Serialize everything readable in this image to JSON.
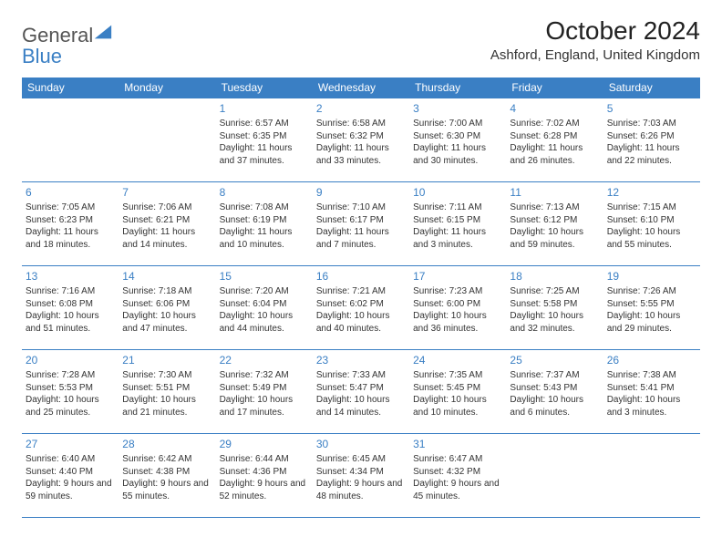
{
  "branding": {
    "text_gray": "General",
    "text_blue": "Blue",
    "logo_color": "#3a7fc4",
    "text_gray_color": "#555555"
  },
  "header": {
    "title": "October 2024",
    "location": "Ashford, England, United Kingdom"
  },
  "style": {
    "header_bg": "#3a7fc4",
    "header_text": "#ffffff",
    "border_color": "#3a7fc4",
    "daynum_color": "#3a7fc4",
    "body_text": "#333333",
    "title_fontsize": 28,
    "location_fontsize": 15,
    "th_fontsize": 12,
    "cell_fontsize": 10,
    "daynum_fontsize": 12
  },
  "table": {
    "columns": [
      "Sunday",
      "Monday",
      "Tuesday",
      "Wednesday",
      "Thursday",
      "Friday",
      "Saturday"
    ],
    "weeks": [
      [
        null,
        null,
        {
          "n": "1",
          "sunrise": "6:57 AM",
          "sunset": "6:35 PM",
          "daylight": "11 hours and 37 minutes."
        },
        {
          "n": "2",
          "sunrise": "6:58 AM",
          "sunset": "6:32 PM",
          "daylight": "11 hours and 33 minutes."
        },
        {
          "n": "3",
          "sunrise": "7:00 AM",
          "sunset": "6:30 PM",
          "daylight": "11 hours and 30 minutes."
        },
        {
          "n": "4",
          "sunrise": "7:02 AM",
          "sunset": "6:28 PM",
          "daylight": "11 hours and 26 minutes."
        },
        {
          "n": "5",
          "sunrise": "7:03 AM",
          "sunset": "6:26 PM",
          "daylight": "11 hours and 22 minutes."
        }
      ],
      [
        {
          "n": "6",
          "sunrise": "7:05 AM",
          "sunset": "6:23 PM",
          "daylight": "11 hours and 18 minutes."
        },
        {
          "n": "7",
          "sunrise": "7:06 AM",
          "sunset": "6:21 PM",
          "daylight": "11 hours and 14 minutes."
        },
        {
          "n": "8",
          "sunrise": "7:08 AM",
          "sunset": "6:19 PM",
          "daylight": "11 hours and 10 minutes."
        },
        {
          "n": "9",
          "sunrise": "7:10 AM",
          "sunset": "6:17 PM",
          "daylight": "11 hours and 7 minutes."
        },
        {
          "n": "10",
          "sunrise": "7:11 AM",
          "sunset": "6:15 PM",
          "daylight": "11 hours and 3 minutes."
        },
        {
          "n": "11",
          "sunrise": "7:13 AM",
          "sunset": "6:12 PM",
          "daylight": "10 hours and 59 minutes."
        },
        {
          "n": "12",
          "sunrise": "7:15 AM",
          "sunset": "6:10 PM",
          "daylight": "10 hours and 55 minutes."
        }
      ],
      [
        {
          "n": "13",
          "sunrise": "7:16 AM",
          "sunset": "6:08 PM",
          "daylight": "10 hours and 51 minutes."
        },
        {
          "n": "14",
          "sunrise": "7:18 AM",
          "sunset": "6:06 PM",
          "daylight": "10 hours and 47 minutes."
        },
        {
          "n": "15",
          "sunrise": "7:20 AM",
          "sunset": "6:04 PM",
          "daylight": "10 hours and 44 minutes."
        },
        {
          "n": "16",
          "sunrise": "7:21 AM",
          "sunset": "6:02 PM",
          "daylight": "10 hours and 40 minutes."
        },
        {
          "n": "17",
          "sunrise": "7:23 AM",
          "sunset": "6:00 PM",
          "daylight": "10 hours and 36 minutes."
        },
        {
          "n": "18",
          "sunrise": "7:25 AM",
          "sunset": "5:58 PM",
          "daylight": "10 hours and 32 minutes."
        },
        {
          "n": "19",
          "sunrise": "7:26 AM",
          "sunset": "5:55 PM",
          "daylight": "10 hours and 29 minutes."
        }
      ],
      [
        {
          "n": "20",
          "sunrise": "7:28 AM",
          "sunset": "5:53 PM",
          "daylight": "10 hours and 25 minutes."
        },
        {
          "n": "21",
          "sunrise": "7:30 AM",
          "sunset": "5:51 PM",
          "daylight": "10 hours and 21 minutes."
        },
        {
          "n": "22",
          "sunrise": "7:32 AM",
          "sunset": "5:49 PM",
          "daylight": "10 hours and 17 minutes."
        },
        {
          "n": "23",
          "sunrise": "7:33 AM",
          "sunset": "5:47 PM",
          "daylight": "10 hours and 14 minutes."
        },
        {
          "n": "24",
          "sunrise": "7:35 AM",
          "sunset": "5:45 PM",
          "daylight": "10 hours and 10 minutes."
        },
        {
          "n": "25",
          "sunrise": "7:37 AM",
          "sunset": "5:43 PM",
          "daylight": "10 hours and 6 minutes."
        },
        {
          "n": "26",
          "sunrise": "7:38 AM",
          "sunset": "5:41 PM",
          "daylight": "10 hours and 3 minutes."
        }
      ],
      [
        {
          "n": "27",
          "sunrise": "6:40 AM",
          "sunset": "4:40 PM",
          "daylight": "9 hours and 59 minutes."
        },
        {
          "n": "28",
          "sunrise": "6:42 AM",
          "sunset": "4:38 PM",
          "daylight": "9 hours and 55 minutes."
        },
        {
          "n": "29",
          "sunrise": "6:44 AM",
          "sunset": "4:36 PM",
          "daylight": "9 hours and 52 minutes."
        },
        {
          "n": "30",
          "sunrise": "6:45 AM",
          "sunset": "4:34 PM",
          "daylight": "9 hours and 48 minutes."
        },
        {
          "n": "31",
          "sunrise": "6:47 AM",
          "sunset": "4:32 PM",
          "daylight": "9 hours and 45 minutes."
        },
        null,
        null
      ]
    ],
    "labels": {
      "sunrise": "Sunrise:",
      "sunset": "Sunset:",
      "daylight": "Daylight:"
    }
  }
}
